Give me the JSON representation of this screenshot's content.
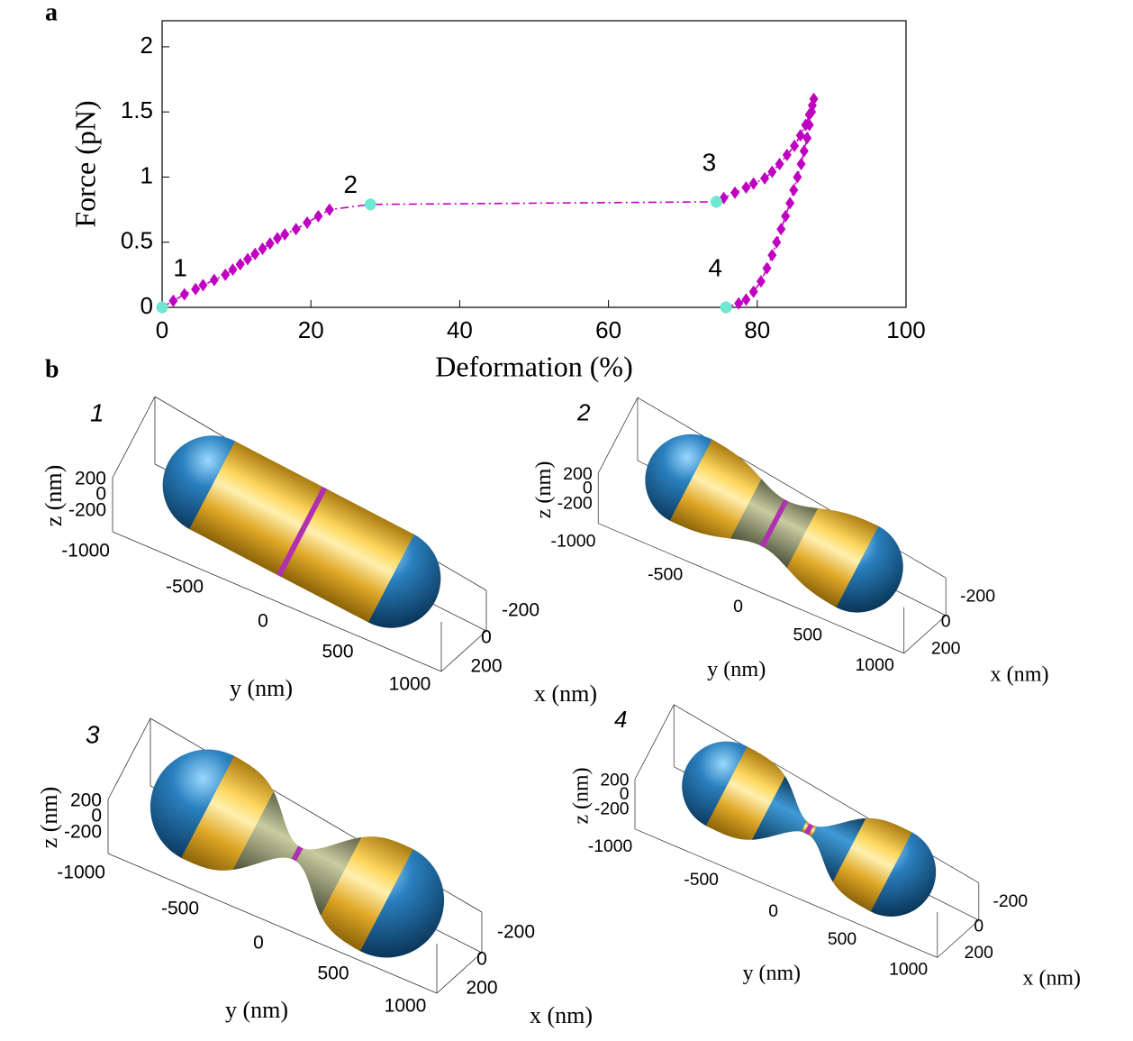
{
  "panel_labels": [
    "a",
    "b"
  ],
  "chart_data": {
    "type": "line",
    "x_label": "Deformation (%)",
    "y_label": "Force (pN)",
    "xlim": [
      0,
      100
    ],
    "xticks": [
      0,
      20,
      40,
      60,
      80,
      100
    ],
    "ylim": [
      0,
      2.2
    ],
    "yticks": [
      0,
      0.5,
      1,
      1.5,
      2
    ],
    "series": [
      {
        "color": "#c000c0",
        "marker": "diamond",
        "linestyle": "dashdot",
        "x": [
          0,
          1.5,
          3,
          4.5,
          5.5,
          7,
          8.5,
          9.5,
          10.5,
          11.5,
          12.5,
          13.5,
          14.5,
          15.5,
          16.5,
          18,
          19.5,
          21,
          22.5,
          28,
          74.5,
          75.5,
          77,
          78.5,
          79.5,
          81,
          82,
          83,
          84,
          85,
          85.8,
          86.5,
          87,
          87.4,
          87.6,
          87.3,
          87,
          86.7,
          86.3,
          85.9,
          85.4,
          84.9,
          84.4,
          83.8,
          83.2,
          82.6,
          82,
          81.3,
          80.5,
          79.5,
          78.5,
          77.5,
          75.8
        ],
        "values": [
          0,
          0.05,
          0.1,
          0.14,
          0.17,
          0.21,
          0.25,
          0.29,
          0.33,
          0.37,
          0.41,
          0.45,
          0.49,
          0.53,
          0.56,
          0.6,
          0.65,
          0.7,
          0.75,
          0.79,
          0.81,
          0.84,
          0.88,
          0.92,
          0.95,
          0.99,
          1.04,
          1.1,
          1.17,
          1.24,
          1.32,
          1.4,
          1.48,
          1.55,
          1.6,
          1.5,
          1.4,
          1.3,
          1.2,
          1.1,
          1.0,
          0.9,
          0.8,
          0.7,
          0.6,
          0.5,
          0.4,
          0.3,
          0.2,
          0.12,
          0.06,
          0.03,
          0
        ]
      },
      {
        "color": "#6ee8d0",
        "marker": "circle",
        "linestyle": "none",
        "x": [
          0,
          28,
          74.5,
          75.8
        ],
        "values": [
          0,
          0.79,
          0.81,
          0
        ],
        "point_labels": [
          "1",
          "2",
          "3",
          "4"
        ]
      }
    ]
  },
  "renders": [
    {
      "label": "1",
      "zlabel": "z (nm)",
      "ylabel": "y (nm)",
      "xlabel": "x (nm)",
      "zticks": [
        200,
        0,
        -200
      ],
      "yticks": [
        -1000,
        -500,
        0,
        500,
        1000
      ],
      "xticks": [
        -200,
        0,
        200
      ]
    },
    {
      "label": "2",
      "zlabel": "z (nm)",
      "ylabel": "y (nm)",
      "xlabel": "x (nm)",
      "zticks": [
        200,
        0,
        -200
      ],
      "yticks": [
        -1000,
        -500,
        0,
        500,
        1000
      ],
      "xticks": [
        -200,
        0,
        200
      ]
    },
    {
      "label": "3",
      "zlabel": "z (nm)",
      "ylabel": "y (nm)",
      "xlabel": "x (nm)",
      "zticks": [
        200,
        0,
        -200
      ],
      "yticks": [
        -1000,
        -500,
        0,
        500,
        1000
      ],
      "xticks": [
        -200,
        0,
        200
      ]
    },
    {
      "label": "4",
      "zlabel": "z (nm)",
      "ylabel": "y (nm)",
      "xlabel": "x (nm)",
      "zticks": [
        200,
        0,
        -200
      ],
      "yticks": [
        -1000,
        -500,
        0,
        500,
        1000
      ],
      "xticks": [
        -200,
        0,
        200
      ]
    }
  ]
}
